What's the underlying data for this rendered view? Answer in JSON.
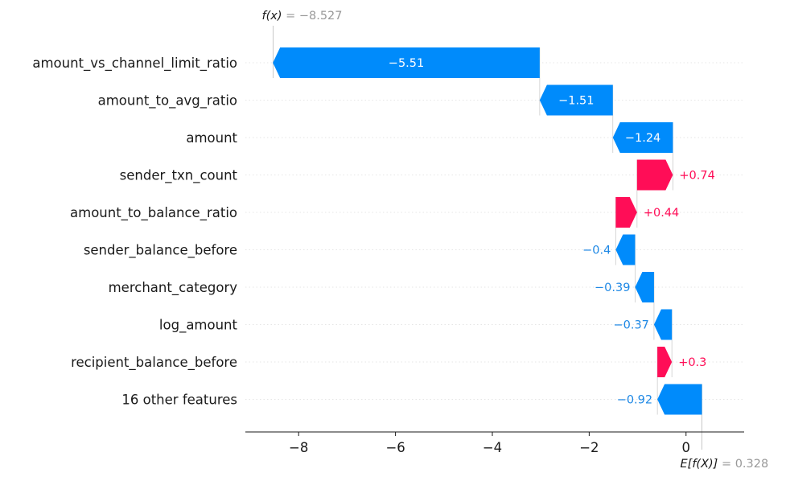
{
  "chart_data": {
    "type": "bar",
    "variant": "waterfall",
    "features": [
      {
        "name": "amount_vs_channel_limit_ratio",
        "value": -5.51,
        "label": "−5.51"
      },
      {
        "name": "amount_to_avg_ratio",
        "value": -1.51,
        "label": "−1.51"
      },
      {
        "name": "amount",
        "value": -1.24,
        "label": "−1.24"
      },
      {
        "name": "sender_txn_count",
        "value": 0.74,
        "label": "+0.74"
      },
      {
        "name": "amount_to_balance_ratio",
        "value": 0.44,
        "label": "+0.44"
      },
      {
        "name": "sender_balance_before",
        "value": -0.4,
        "label": "−0.4"
      },
      {
        "name": "merchant_category",
        "value": -0.39,
        "label": "−0.39"
      },
      {
        "name": "log_amount",
        "value": -0.37,
        "label": "−0.37"
      },
      {
        "name": "recipient_balance_before",
        "value": 0.3,
        "label": "+0.3"
      },
      {
        "name": "16 other features",
        "value": -0.92,
        "label": "−0.92"
      }
    ],
    "base_value": 0.328,
    "output_value": -8.527,
    "fx_label": "f(x)",
    "fx_value_text": "= −8.527",
    "efx_label": "E[f(X)]",
    "efx_value_text": "= 0.328",
    "xlim": [
      -9.1,
      1.2
    ],
    "xticks": [
      {
        "v": -8,
        "label": "−8"
      },
      {
        "v": -6,
        "label": "−6"
      },
      {
        "v": -4,
        "label": "−4"
      },
      {
        "v": -2,
        "label": "−2"
      },
      {
        "v": 0,
        "label": "0"
      }
    ],
    "colors": {
      "positive": "#ff0d57",
      "negative": "#008bfb",
      "negative_text": "#1e88e5",
      "guide": "#cccccc"
    },
    "grid": false
  }
}
